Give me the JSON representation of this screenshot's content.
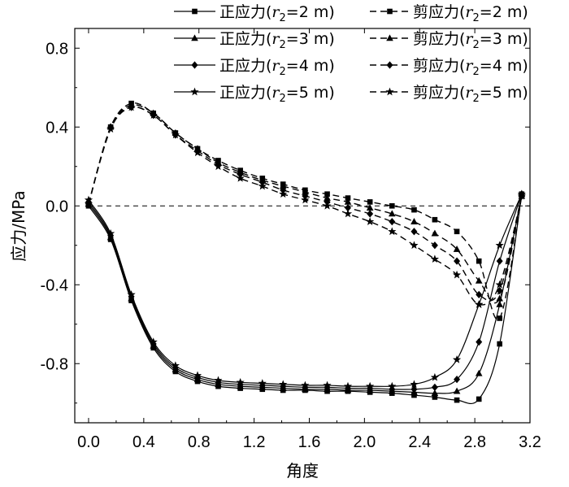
{
  "chart_data": {
    "type": "line",
    "title": "",
    "xlabel": "角度",
    "ylabel": "应力/MPa",
    "xlim": [
      -0.1,
      3.2
    ],
    "ylim": [
      -1.1,
      0.9
    ],
    "xticks": [
      "0.0",
      "0.4",
      "0.8",
      "1.2",
      "1.6",
      "2.0",
      "2.4",
      "2.8",
      "3.2"
    ],
    "yticks": [
      "0.8",
      "0.4",
      "0.0",
      "-0.4",
      "-0.8"
    ],
    "reference_line": {
      "y": 0.0,
      "style": "dashed"
    },
    "legend": {
      "placement": "top-right"
    },
    "series": [
      {
        "name": "正应力(r2=2 m)",
        "legend_prefix": "正应力(",
        "legend_var": "r",
        "legend_sub": "2",
        "legend_suffix": "=2 m)",
        "style": "solid",
        "marker": "square",
        "x": [
          0.0,
          0.16,
          0.31,
          0.47,
          0.63,
          0.79,
          0.94,
          1.1,
          1.26,
          1.41,
          1.57,
          1.73,
          1.88,
          2.04,
          2.2,
          2.36,
          2.51,
          2.67,
          2.83,
          2.98,
          3.14
        ],
        "y": [
          0.0,
          -0.17,
          -0.48,
          -0.72,
          -0.84,
          -0.89,
          -0.915,
          -0.925,
          -0.93,
          -0.935,
          -0.935,
          -0.94,
          -0.94,
          -0.945,
          -0.95,
          -0.96,
          -0.97,
          -0.985,
          -0.98,
          -0.7,
          0.06
        ]
      },
      {
        "name": "正应力(r2=3 m)",
        "legend_prefix": "正应力(",
        "legend_var": "r",
        "legend_sub": "2",
        "legend_suffix": "=3 m)",
        "style": "solid",
        "marker": "triangle",
        "x": [
          0.0,
          0.16,
          0.31,
          0.47,
          0.63,
          0.79,
          0.94,
          1.1,
          1.26,
          1.41,
          1.57,
          1.73,
          1.88,
          2.04,
          2.2,
          2.36,
          2.51,
          2.67,
          2.83,
          2.98,
          3.14
        ],
        "y": [
          0.01,
          -0.16,
          -0.47,
          -0.71,
          -0.83,
          -0.88,
          -0.905,
          -0.915,
          -0.92,
          -0.925,
          -0.93,
          -0.93,
          -0.935,
          -0.935,
          -0.94,
          -0.945,
          -0.95,
          -0.94,
          -0.85,
          -0.5,
          0.06
        ]
      },
      {
        "name": "正应力(r2=4 m)",
        "legend_prefix": "正应力(",
        "legend_var": "r",
        "legend_sub": "2",
        "legend_suffix": "=4 m)",
        "style": "solid",
        "marker": "diamond",
        "x": [
          0.0,
          0.16,
          0.31,
          0.47,
          0.63,
          0.79,
          0.94,
          1.1,
          1.26,
          1.41,
          1.57,
          1.73,
          1.88,
          2.04,
          2.2,
          2.36,
          2.51,
          2.67,
          2.83,
          2.98,
          3.14
        ],
        "y": [
          0.02,
          -0.15,
          -0.46,
          -0.7,
          -0.82,
          -0.87,
          -0.895,
          -0.905,
          -0.91,
          -0.915,
          -0.92,
          -0.92,
          -0.925,
          -0.925,
          -0.93,
          -0.93,
          -0.92,
          -0.88,
          -0.69,
          -0.28,
          0.06
        ]
      },
      {
        "name": "正应力(r2=5 m)",
        "legend_prefix": "正应力(",
        "legend_var": "r",
        "legend_sub": "2",
        "legend_suffix": "=5 m)",
        "style": "solid",
        "marker": "star",
        "x": [
          0.0,
          0.16,
          0.31,
          0.47,
          0.63,
          0.79,
          0.94,
          1.1,
          1.26,
          1.41,
          1.57,
          1.73,
          1.88,
          2.04,
          2.2,
          2.36,
          2.51,
          2.67,
          2.83,
          2.98,
          3.14
        ],
        "y": [
          0.03,
          -0.14,
          -0.45,
          -0.69,
          -0.81,
          -0.86,
          -0.885,
          -0.895,
          -0.9,
          -0.905,
          -0.91,
          -0.91,
          -0.915,
          -0.915,
          -0.915,
          -0.905,
          -0.87,
          -0.78,
          -0.5,
          -0.2,
          0.06
        ]
      },
      {
        "name": "剪应力(r2=2 m)",
        "legend_prefix": "剪应力(",
        "legend_var": "r",
        "legend_sub": "2",
        "legend_suffix": "=2 m)",
        "style": "dashed",
        "marker": "square",
        "x": [
          0.0,
          0.16,
          0.31,
          0.47,
          0.63,
          0.79,
          0.94,
          1.1,
          1.26,
          1.41,
          1.57,
          1.73,
          1.88,
          2.04,
          2.2,
          2.36,
          2.51,
          2.67,
          2.83,
          2.98,
          3.14
        ],
        "y": [
          0.01,
          0.4,
          0.52,
          0.47,
          0.37,
          0.29,
          0.23,
          0.18,
          0.14,
          0.11,
          0.08,
          0.06,
          0.04,
          0.02,
          0.0,
          -0.02,
          -0.07,
          -0.13,
          -0.28,
          -0.57,
          0.05
        ]
      },
      {
        "name": "剪应力(r2=3 m)",
        "legend_prefix": "剪应力(",
        "legend_var": "r",
        "legend_sub": "2",
        "legend_suffix": "=3 m)",
        "style": "dashed",
        "marker": "triangle",
        "x": [
          0.0,
          0.16,
          0.31,
          0.47,
          0.63,
          0.79,
          0.94,
          1.1,
          1.26,
          1.41,
          1.57,
          1.73,
          1.88,
          2.04,
          2.2,
          2.36,
          2.51,
          2.67,
          2.83,
          2.98,
          3.14
        ],
        "y": [
          0.01,
          0.4,
          0.51,
          0.47,
          0.37,
          0.29,
          0.22,
          0.17,
          0.13,
          0.1,
          0.07,
          0.04,
          0.02,
          -0.01,
          -0.04,
          -0.08,
          -0.14,
          -0.22,
          -0.38,
          -0.47,
          0.05
        ]
      },
      {
        "name": "剪应力(r2=4 m)",
        "legend_prefix": "剪应力(",
        "legend_var": "r",
        "legend_sub": "2",
        "legend_suffix": "=4 m)",
        "style": "dashed",
        "marker": "diamond",
        "x": [
          0.0,
          0.16,
          0.31,
          0.47,
          0.63,
          0.79,
          0.94,
          1.1,
          1.26,
          1.41,
          1.57,
          1.73,
          1.88,
          2.04,
          2.2,
          2.36,
          2.51,
          2.67,
          2.83,
          2.98,
          3.14
        ],
        "y": [
          0.01,
          0.4,
          0.5,
          0.46,
          0.36,
          0.28,
          0.21,
          0.16,
          0.12,
          0.08,
          0.05,
          0.02,
          -0.01,
          -0.04,
          -0.08,
          -0.13,
          -0.2,
          -0.28,
          -0.45,
          -0.43,
          0.05
        ]
      },
      {
        "name": "剪应力(r2=5 m)",
        "legend_prefix": "剪应力(",
        "legend_var": "r",
        "legend_sub": "2",
        "legend_suffix": "=5 m)",
        "style": "dashed",
        "marker": "star",
        "x": [
          0.0,
          0.16,
          0.31,
          0.47,
          0.63,
          0.79,
          0.94,
          1.1,
          1.26,
          1.41,
          1.57,
          1.73,
          1.88,
          2.04,
          2.2,
          2.36,
          2.51,
          2.67,
          2.83,
          2.98,
          3.14
        ],
        "y": [
          0.01,
          0.39,
          0.5,
          0.46,
          0.36,
          0.27,
          0.2,
          0.14,
          0.1,
          0.06,
          0.03,
          0.0,
          -0.04,
          -0.08,
          -0.13,
          -0.2,
          -0.27,
          -0.35,
          -0.5,
          -0.4,
          0.05
        ]
      }
    ]
  }
}
